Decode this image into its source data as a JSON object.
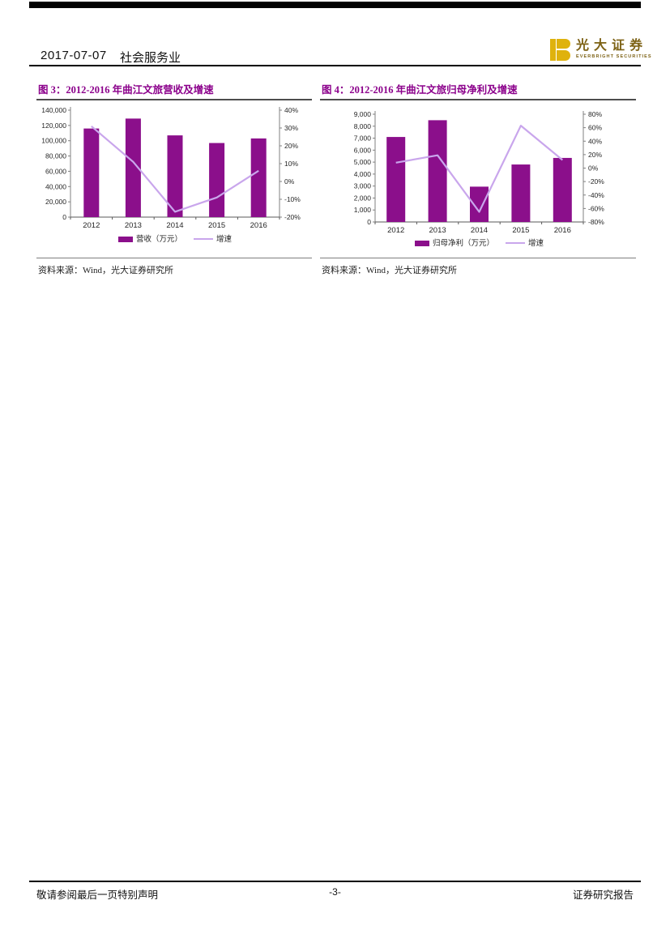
{
  "header": {
    "date": "2017-07-07",
    "industry": "社会服务业"
  },
  "logo": {
    "brand_cn": "光大证券",
    "brand_en": "EVERBRIGHT SECURITIES",
    "brand_color": "#DFB20D",
    "text_color": "#7d6215"
  },
  "figures": [
    {
      "title": "图 3：2012-2016 年曲江文旅营收及增速",
      "source": "资料来源：Wind，光大证券研究所"
    },
    {
      "title": "图 4：2012-2016 年曲江文旅归母净利及增速",
      "source": "资料来源：Wind，光大证券研究所"
    }
  ],
  "footer": {
    "left": "敬请参阅最后一页特别声明",
    "page": "-3-",
    "right": "证券研究报告"
  },
  "colors": {
    "title_accent": "#8B008B",
    "bar": "#8B0F8B",
    "line": "#C9A6EC",
    "axis": "#808080",
    "axis_text": "#262626",
    "rule": "#000000"
  },
  "chart_data": [
    {
      "type": "bar",
      "subtype": "combo-bar-line",
      "title": "2012-2016 年曲江文旅营收及增速",
      "categories": [
        "2012",
        "2013",
        "2014",
        "2015",
        "2016"
      ],
      "series": [
        {
          "name": "营收（万元）",
          "type": "bar",
          "axis": "left",
          "values": [
            116000,
            129000,
            107000,
            97000,
            103000
          ]
        },
        {
          "name": "增速",
          "type": "line",
          "axis": "right",
          "values": [
            31,
            11,
            -17,
            -9,
            6
          ]
        }
      ],
      "left_axis": {
        "min": 0,
        "max": 140000,
        "step": 20000
      },
      "right_axis": {
        "min": -20,
        "max": 40,
        "step": 10,
        "suffix": "%"
      },
      "grid": false,
      "legend_position": "bottom"
    },
    {
      "type": "bar",
      "subtype": "combo-bar-line",
      "title": "2012-2016 年曲江文旅归母净利及增速",
      "categories": [
        "2012",
        "2013",
        "2014",
        "2015",
        "2016"
      ],
      "series": [
        {
          "name": "归母净利（万元）",
          "type": "bar",
          "axis": "left",
          "values": [
            7100,
            8500,
            2950,
            4800,
            5350
          ]
        },
        {
          "name": "增速",
          "type": "line",
          "axis": "right",
          "values": [
            8,
            19,
            -65,
            63,
            12
          ]
        }
      ],
      "left_axis": {
        "min": 0,
        "max": 9000,
        "step": 1000
      },
      "right_axis": {
        "min": -80,
        "max": 80,
        "step": 20,
        "suffix": "%"
      },
      "grid": false,
      "legend_position": "bottom"
    }
  ]
}
